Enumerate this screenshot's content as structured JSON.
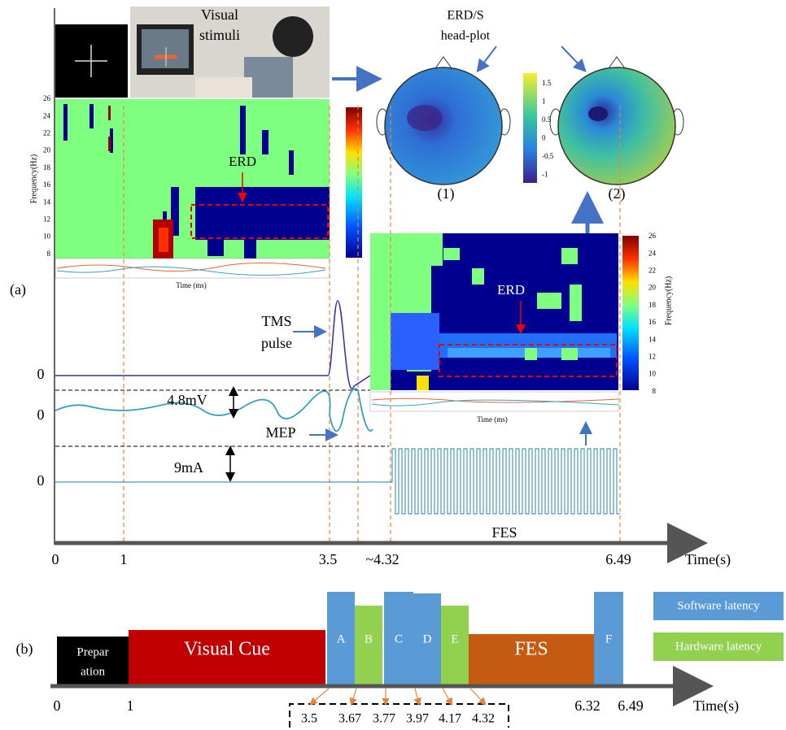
{
  "panel_a": {
    "label": "(a)",
    "stimulus_title": [
      "Visual",
      "stimuli"
    ],
    "head_plot_title": [
      "ERD/S",
      "head-plot"
    ],
    "head_plot_labels": [
      "(1)",
      "(2)"
    ],
    "head_colorbar_ticks": [
      "1.5",
      "1",
      "0.5",
      "0",
      "-0.5",
      "-1"
    ],
    "spectrogram_left": {
      "y_label": "Frequency(Hz)",
      "y_ticks": [
        "26",
        "24",
        "22",
        "20",
        "18",
        "16",
        "14",
        "12",
        "10",
        "8"
      ],
      "annotation": "ERD",
      "x_label": "Time (ms)"
    },
    "spectrogram_right": {
      "y_label": "Frequency(Hz)",
      "y_ticks": [
        "26",
        "24",
        "22",
        "20",
        "18",
        "16",
        "14",
        "12",
        "10",
        "8"
      ],
      "annotation": "ERD",
      "x_label": "Time (ms)"
    },
    "traces": {
      "zero_labels": [
        "0",
        "0",
        "0"
      ],
      "tms": [
        "TMS",
        "pulse"
      ],
      "mep_amplitude": "4.8mV",
      "mep": "MEP",
      "fes_amplitude": "9mA",
      "fes": "FES"
    },
    "timeline": {
      "ticks": [
        "0",
        "1",
        "3.5",
        "~4.32",
        "6.49"
      ],
      "label": "Time(s)"
    }
  },
  "panel_b": {
    "label": "(b)",
    "blocks": [
      [
        "Prepar",
        "ation"
      ],
      [
        "Visual Cue"
      ],
      [
        "A"
      ],
      [
        "B"
      ],
      [
        "C"
      ],
      [
        "D"
      ],
      [
        "E"
      ],
      [
        "FES"
      ],
      [
        "F"
      ]
    ],
    "legend": [
      "Software latency",
      "Hardware latency"
    ],
    "timeline": {
      "ticks": [
        "0",
        "1",
        "6.32",
        "6.49"
      ],
      "label": "Time(s)"
    },
    "latencies": [
      "3.5",
      "3.67",
      "3.77",
      "3.97",
      "4.17",
      "4.32"
    ]
  }
}
